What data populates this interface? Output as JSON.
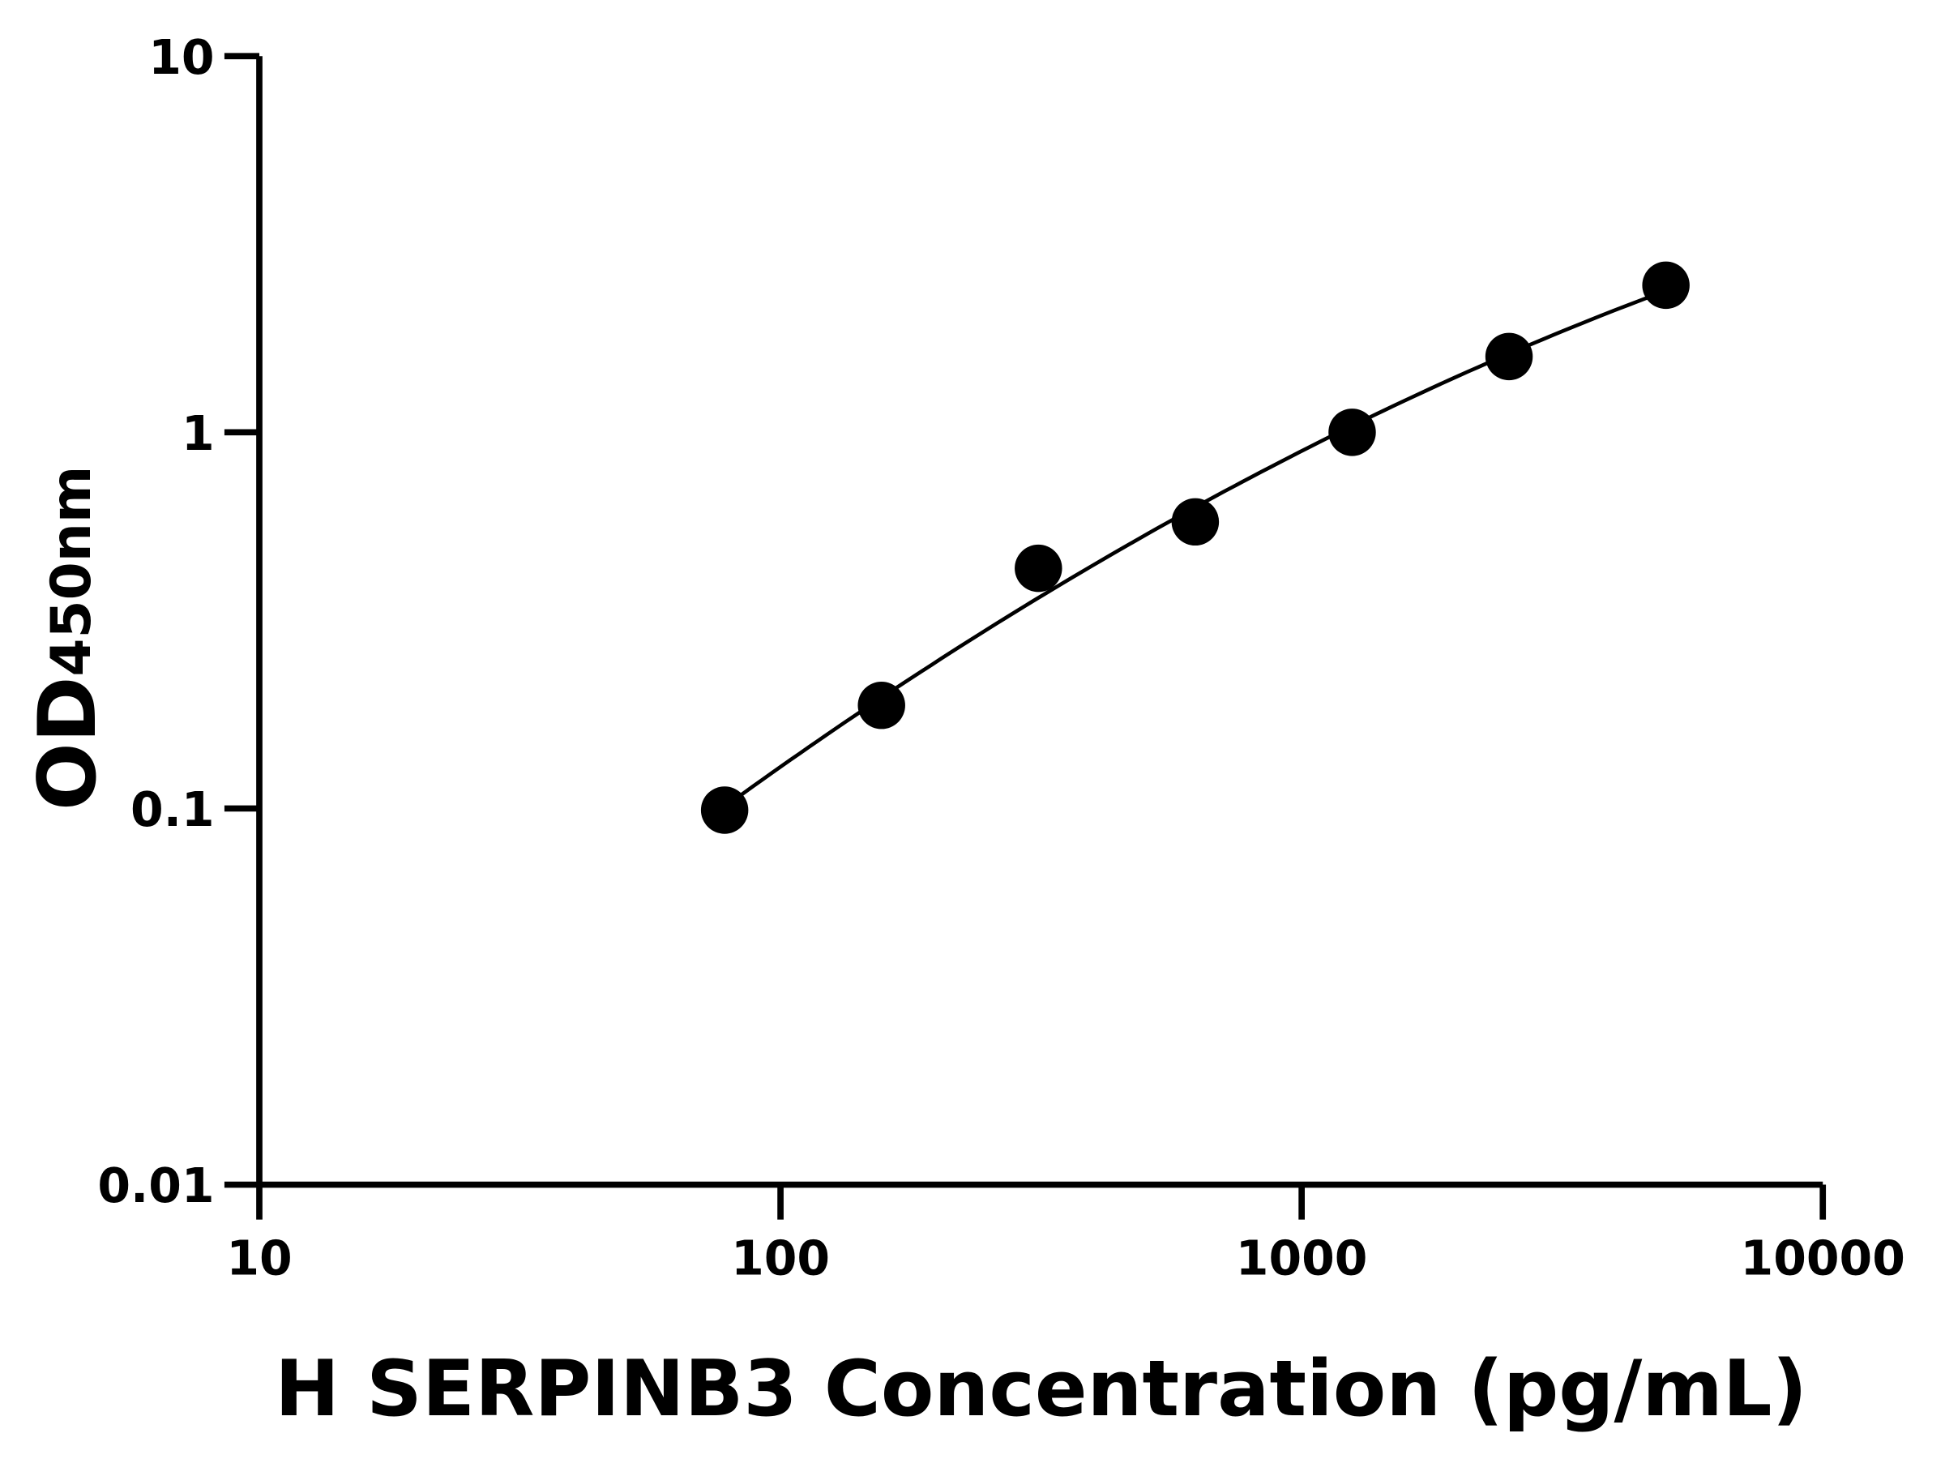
{
  "chart_data": {
    "type": "scatter",
    "title": "",
    "xlabel": "H SERPINB3 Concentration (pg/mL)",
    "ylabel": {
      "main": "OD",
      "subscript": "450nm"
    },
    "xscale": "log",
    "yscale": "log",
    "xlim": [
      10,
      10000
    ],
    "ylim": [
      0.01,
      10
    ],
    "xticks": [
      "10",
      "100",
      "1000",
      "10000"
    ],
    "yticks": [
      "0.01",
      "0.1",
      "1",
      "10"
    ],
    "grid": false,
    "legend": "none",
    "fit_curve": true,
    "color": "#000000",
    "points": {
      "x": [
        78.125,
        156.25,
        312.5,
        625,
        1250,
        2500,
        5000
      ],
      "y": [
        0.099,
        0.188,
        0.435,
        0.578,
        1.0,
        1.59,
        2.46
      ]
    }
  }
}
